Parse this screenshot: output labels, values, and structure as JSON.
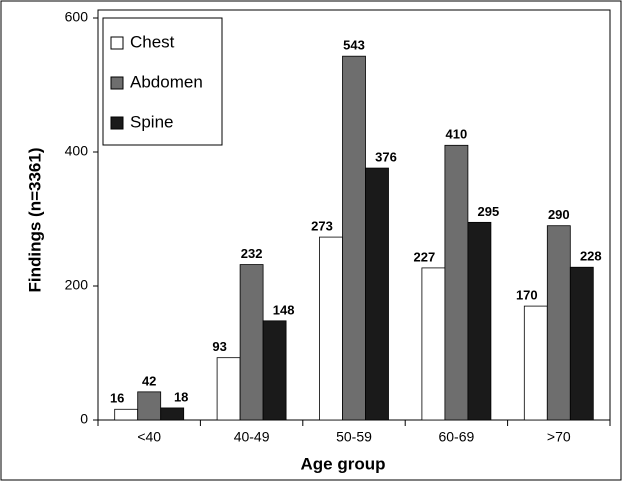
{
  "chart_data": {
    "type": "bar",
    "xlabel": "Age group",
    "ylabel": "Findings (n=3361)",
    "categories": [
      "<40",
      "40-49",
      "50-59",
      "60-69",
      ">70"
    ],
    "series": [
      {
        "name": "Chest",
        "color": "#ffffff",
        "values": [
          16,
          93,
          273,
          227,
          170
        ]
      },
      {
        "name": "Abdomen",
        "color": "#6e6e6e",
        "values": [
          42,
          232,
          543,
          410,
          290
        ]
      },
      {
        "name": "Spine",
        "color": "#1a1a1a",
        "values": [
          18,
          148,
          376,
          295,
          228
        ]
      }
    ],
    "ylim": [
      0,
      600
    ],
    "yticks": [
      0,
      200,
      400,
      600
    ],
    "legend": "upper left"
  }
}
